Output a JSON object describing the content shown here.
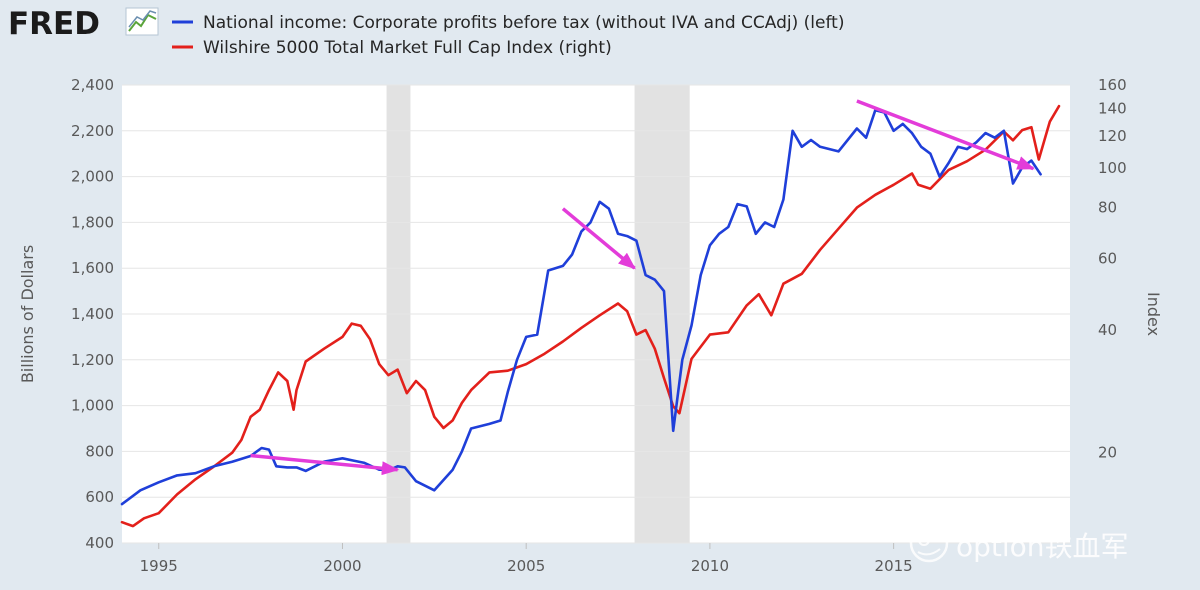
{
  "header": {
    "logo_text": "FRED",
    "legend": [
      {
        "label": "National income: Corporate profits before tax (without IVA and CCAdj) (left)",
        "color": "#1f3fd9"
      },
      {
        "label": "Wilshire 5000 Total Market Full Cap Index (right)",
        "color": "#e3201b"
      }
    ]
  },
  "watermark": {
    "text": "option铁血军"
  },
  "chart_data": {
    "type": "line",
    "title": "",
    "xlabel": "",
    "ylabel": "Billions of Dollars",
    "ylabel_right": "Index",
    "xlim": [
      1994.0,
      2019.8
    ],
    "ylim": [
      400,
      2400
    ],
    "ylim_right_log": [
      12,
      160
    ],
    "x_ticks": [
      1995,
      2000,
      2005,
      2010,
      2015
    ],
    "x_tick_labels": [
      "1995",
      "2000",
      "2005",
      "2010",
      "2015"
    ],
    "y_ticks": [
      400,
      600,
      800,
      1000,
      1200,
      1400,
      1600,
      1800,
      2000,
      2200,
      2400
    ],
    "y_tick_labels": [
      "400",
      "600",
      "800",
      "1,000",
      "1,200",
      "1,400",
      "1,600",
      "1,800",
      "2,000",
      "2,200",
      "2,400"
    ],
    "y_right_ticks": [
      20,
      40,
      60,
      80,
      100,
      120,
      140,
      160
    ],
    "y_right_tick_labels": [
      "20",
      "40",
      "60",
      "80",
      "100",
      "120",
      "140",
      "160"
    ],
    "recessions": [
      [
        2001.2,
        2001.85
      ],
      [
        2007.95,
        2009.45
      ]
    ],
    "series": [
      {
        "name": "National income: Corporate profits before tax (without IVA and CCAdj) (left)",
        "axis": "left",
        "color": "#1f3fd9",
        "x": [
          1994.0,
          1994.5,
          1995.0,
          1995.5,
          1996.0,
          1996.5,
          1997.0,
          1997.5,
          1997.8,
          1998.0,
          1998.2,
          1998.5,
          1998.75,
          1999.0,
          1999.5,
          2000.0,
          2000.3,
          2000.6,
          2001.0,
          2001.3,
          2001.5,
          2001.7,
          2002.0,
          2002.5,
          2003.0,
          2003.25,
          2003.5,
          2004.0,
          2004.3,
          2004.5,
          2004.75,
          2005.0,
          2005.3,
          2005.6,
          2006.0,
          2006.25,
          2006.5,
          2006.75,
          2007.0,
          2007.25,
          2007.5,
          2007.75,
          2008.0,
          2008.25,
          2008.5,
          2008.75,
          2009.0,
          2009.25,
          2009.5,
          2009.75,
          2010.0,
          2010.25,
          2010.5,
          2010.75,
          2011.0,
          2011.25,
          2011.5,
          2011.75,
          2012.0,
          2012.25,
          2012.5,
          2012.75,
          2013.0,
          2013.5,
          2014.0,
          2014.25,
          2014.5,
          2014.75,
          2015.0,
          2015.25,
          2015.5,
          2015.75,
          2016.0,
          2016.25,
          2016.5,
          2016.75,
          2017.0,
          2017.25,
          2017.5,
          2017.75,
          2018.0,
          2018.25,
          2018.5,
          2018.75,
          2019.0
        ],
        "y": [
          570,
          630,
          665,
          695,
          705,
          735,
          755,
          780,
          815,
          808,
          735,
          730,
          730,
          715,
          755,
          770,
          760,
          750,
          720,
          720,
          735,
          730,
          670,
          630,
          720,
          800,
          900,
          920,
          935,
          1060,
          1200,
          1300,
          1310,
          1590,
          1610,
          1660,
          1760,
          1800,
          1890,
          1860,
          1750,
          1740,
          1720,
          1570,
          1550,
          1500,
          890,
          1200,
          1350,
          1570,
          1700,
          1750,
          1780,
          1880,
          1870,
          1750,
          1800,
          1780,
          1900,
          2200,
          2130,
          2160,
          2130,
          2110,
          2210,
          2170,
          2290,
          2280,
          2200,
          2230,
          2190,
          2130,
          2100,
          2000,
          2060,
          2130,
          2120,
          2150,
          2190,
          2170,
          2200,
          1970,
          2040,
          2070,
          2010
        ]
      },
      {
        "name": "Wilshire 5000 Total Market Full Cap Index (right)",
        "axis": "right",
        "color": "#e3201b",
        "x": [
          1994.0,
          1994.3,
          1994.6,
          1995.0,
          1995.5,
          1996.0,
          1996.5,
          1997.0,
          1997.25,
          1997.5,
          1997.75,
          1998.0,
          1998.25,
          1998.5,
          1998.67,
          1998.75,
          1999.0,
          1999.5,
          2000.0,
          2000.25,
          2000.5,
          2000.75,
          2001.0,
          2001.25,
          2001.5,
          2001.75,
          2002.0,
          2002.25,
          2002.5,
          2002.75,
          2003.0,
          2003.25,
          2003.5,
          2004.0,
          2004.5,
          2005.0,
          2005.5,
          2006.0,
          2006.5,
          2007.0,
          2007.5,
          2007.75,
          2008.0,
          2008.25,
          2008.5,
          2008.75,
          2009.0,
          2009.17,
          2009.5,
          2010.0,
          2010.5,
          2011.0,
          2011.33,
          2011.67,
          2012.0,
          2012.5,
          2013.0,
          2013.5,
          2014.0,
          2014.5,
          2015.0,
          2015.5,
          2015.67,
          2016.0,
          2016.5,
          2017.0,
          2017.5,
          2018.0,
          2018.25,
          2018.5,
          2018.75,
          2018.95,
          2019.25,
          2019.5
        ],
        "y": [
          13.5,
          13.2,
          13.8,
          14.2,
          15.8,
          17.2,
          18.5,
          20,
          21.5,
          24.5,
          25.5,
          28.5,
          31.5,
          30.0,
          25.5,
          28.5,
          33.5,
          36.0,
          38.5,
          41.5,
          41.0,
          38.0,
          33.0,
          31.0,
          32.0,
          28.0,
          30.0,
          28.5,
          24.5,
          23.0,
          24.0,
          26.5,
          28.5,
          31.5,
          31.8,
          33.0,
          35.0,
          37.5,
          40.5,
          43.5,
          46.5,
          44.5,
          39.0,
          40.0,
          36.0,
          30.5,
          26.0,
          25.0,
          34.0,
          39.0,
          39.5,
          46.0,
          49.0,
          43.5,
          52.0,
          55.0,
          63.0,
          71.0,
          80.0,
          86.0,
          91.0,
          97.0,
          91.0,
          89.0,
          99.0,
          104.0,
          111.0,
          123.0,
          117.0,
          124.0,
          126.0,
          105.0,
          130.0,
          142.0
        ]
      }
    ],
    "annotations": [
      {
        "type": "arrow",
        "color": "#e33cd9",
        "from": [
          1997.5,
          782
        ],
        "to": [
          2001.5,
          720
        ]
      },
      {
        "type": "arrow",
        "color": "#e33cd9",
        "from": [
          2006.0,
          1860
        ],
        "to": [
          2007.95,
          1600
        ]
      },
      {
        "type": "arrow",
        "color": "#e33cd9",
        "from": [
          2014.0,
          2330
        ],
        "to": [
          2018.8,
          2035
        ]
      }
    ]
  }
}
